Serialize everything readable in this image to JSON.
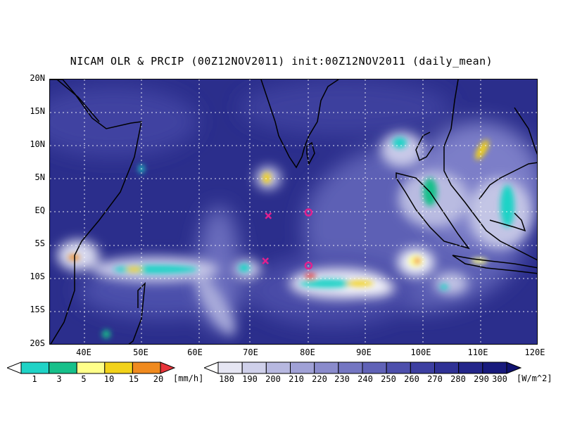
{
  "title": "NICAM OLR & PRCIP (00Z12NOV2011) init:00Z12NOV2011 (daily_mean)",
  "map": {
    "lat_labels": [
      "20N",
      "15N",
      "10N",
      "5N",
      "EQ",
      "5S",
      "10S",
      "15S",
      "20S"
    ],
    "lon_labels": [
      "40E",
      "50E",
      "60E",
      "70E",
      "80E",
      "90E",
      "100E",
      "110E",
      "120E"
    ],
    "lon_range": [
      35,
      120
    ],
    "lat_range": [
      -20,
      20
    ],
    "gridlines": "dotted",
    "markers": [
      {
        "type": "x",
        "lon": 73,
        "lat": -0.5,
        "color": "#e0208f"
      },
      {
        "type": "x",
        "lon": 72.5,
        "lat": -7.3,
        "color": "#e0208f"
      },
      {
        "type": "o",
        "lon": 80,
        "lat": 0,
        "color": "#e0208f"
      },
      {
        "type": "o",
        "lon": 80,
        "lat": -8,
        "color": "#e0208f"
      }
    ]
  },
  "precip_colorbar": {
    "labels": [
      "1",
      "3",
      "5",
      "10",
      "15",
      "20"
    ],
    "unit": "[mm/h]",
    "colors": [
      "#ffffff",
      "#1fd3c6",
      "#16c08a",
      "#ffff8a",
      "#f2d21a",
      "#f08a1e",
      "#e8343a"
    ]
  },
  "olr_colorbar": {
    "labels": [
      "180",
      "190",
      "200",
      "210",
      "220",
      "230",
      "240",
      "250",
      "260",
      "270",
      "280",
      "290",
      "300"
    ],
    "unit": "[W/m^2]",
    "colors": [
      "#ffffff",
      "#e6e6f3",
      "#cfd0ea",
      "#b7b8e0",
      "#a0a1d6",
      "#8a8bcc",
      "#7476c2",
      "#6062b7",
      "#4d4fac",
      "#3d3fa1",
      "#2f3195",
      "#23258a",
      "#181a7d",
      "#101270"
    ]
  }
}
